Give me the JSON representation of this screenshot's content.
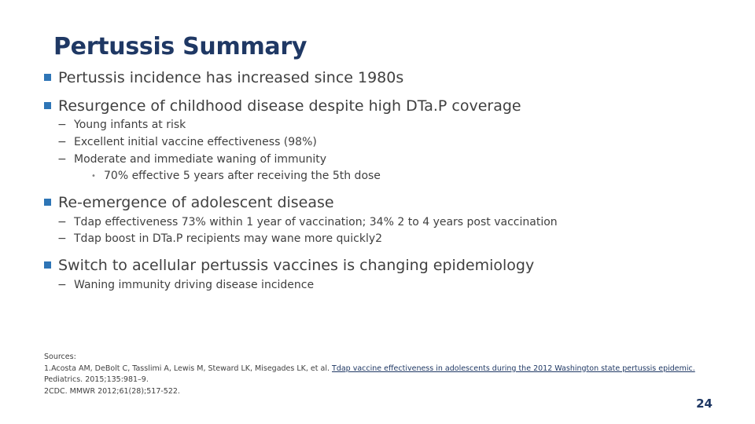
{
  "slide": {
    "title": "Pertussis Summary",
    "page_number": "24"
  },
  "bullets": {
    "b1": "Pertussis incidence has increased since 1980s",
    "b2": "Resurgence of childhood disease despite high DTa.P coverage",
    "b2_sub1": "Young infants at risk",
    "b2_sub2": "Excellent initial vaccine effectiveness (98%)",
    "b2_sub3": "Moderate and immediate waning of immunity",
    "b2_sub3_sub1": "70% effective 5 years after receiving the 5th dose",
    "b3": "Re-emergence of adolescent disease",
    "b3_sub1": "Tdap effectiveness 73% within 1 year of vaccination; 34% 2 to 4 years post vaccination",
    "b3_sub2": "Tdap boost in DTa.P recipients may wane more quickly2",
    "b4": "Switch to acellular pertussis vaccines is changing epidemiology",
    "b4_sub1": "Waning immunity driving disease incidence"
  },
  "markers": {
    "level2": "−",
    "level3": "•"
  },
  "sources": {
    "heading": "Sources:",
    "ref1_prefix": "1.Acosta AM, DeBolt C, Tasslimi A, Lewis M, Steward LK, Misegades LK, et al.",
    "ref1_link": "Tdap vaccine effectiveness in adolescents during the 2012 Washington state pertussis epidemic.",
    "ref1_cont": "Pediatrics. 2015;135:981–9.",
    "ref2": "2CDC. MMWR 2012;61(28);517-522."
  },
  "colors": {
    "title": "#1f3864",
    "bullet": "#2e75b6",
    "text": "#404040"
  }
}
